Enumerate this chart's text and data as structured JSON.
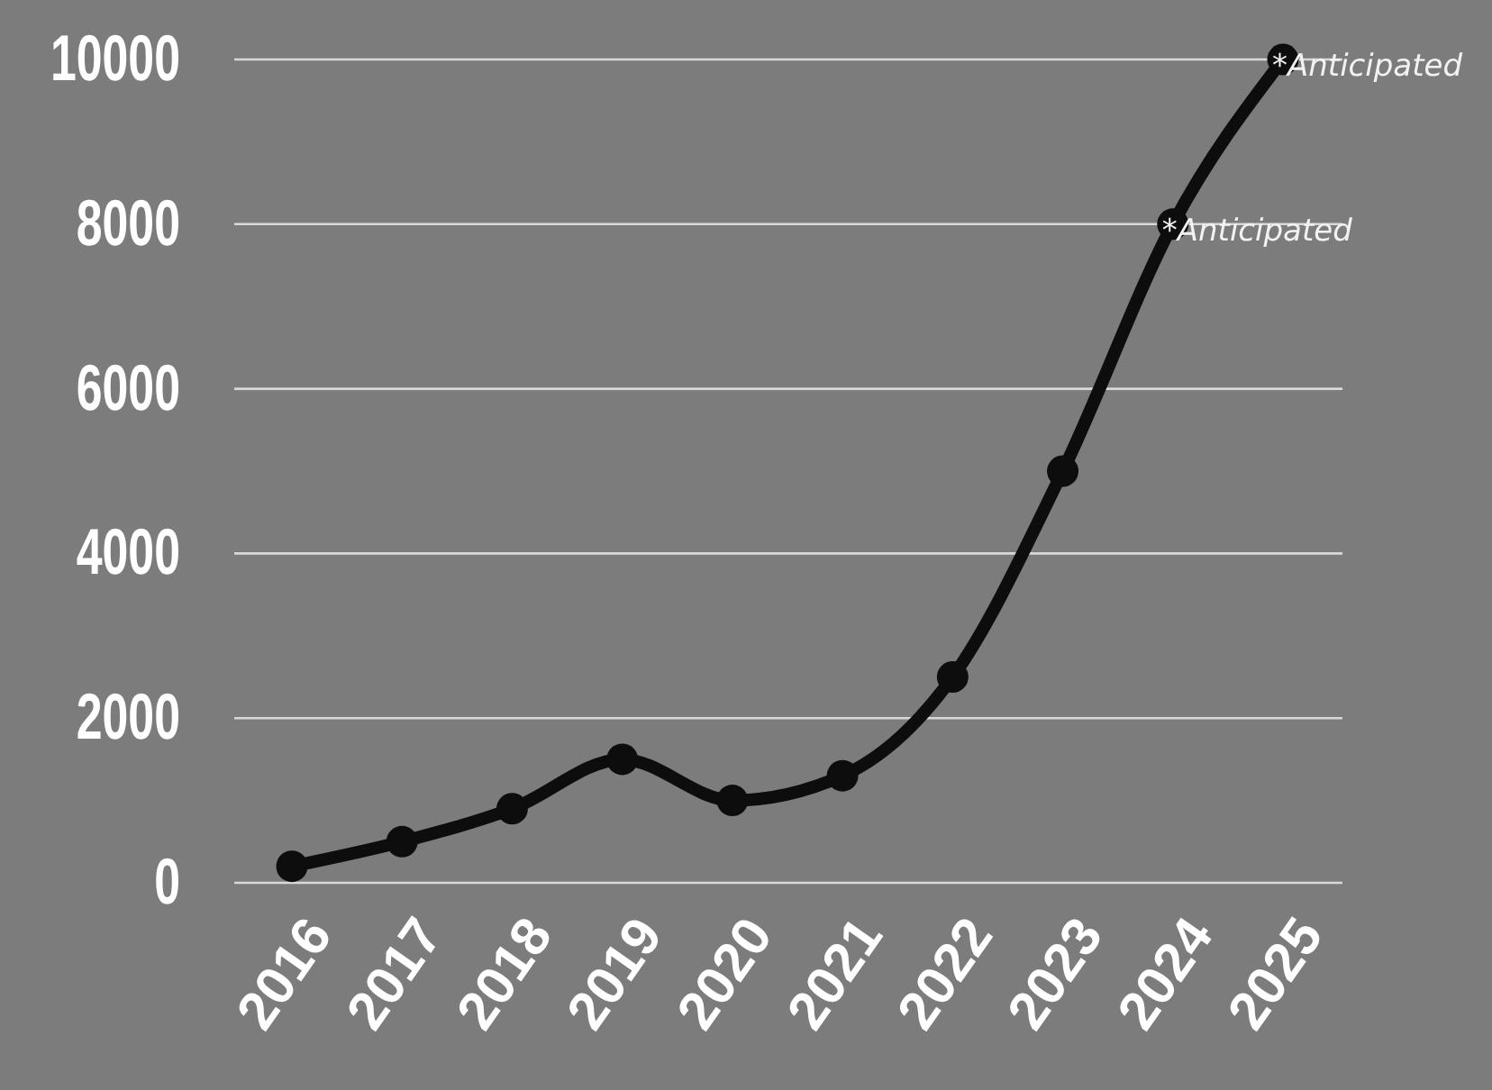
{
  "chart_data": {
    "type": "line",
    "categories": [
      "2016",
      "2017",
      "2018",
      "2019",
      "2020",
      "2021",
      "2022",
      "2023",
      "2024",
      "2025"
    ],
    "series": [
      {
        "color": "#0d0d0d",
        "values": [
          200,
          500,
          900,
          1500,
          1000,
          1300,
          2500,
          5000,
          8000,
          10000
        ]
      }
    ],
    "ylim": [
      0,
      10000
    ],
    "yticks": [
      0,
      2000,
      4000,
      6000,
      8000,
      10000
    ],
    "grid": "y",
    "marker": "circle",
    "line_style": "solid",
    "annotations": [
      {
        "text": "*Anticipated",
        "x": "2024",
        "y": 8000
      },
      {
        "text": "*Anticipated",
        "x": "2025",
        "y": 10000
      }
    ]
  }
}
